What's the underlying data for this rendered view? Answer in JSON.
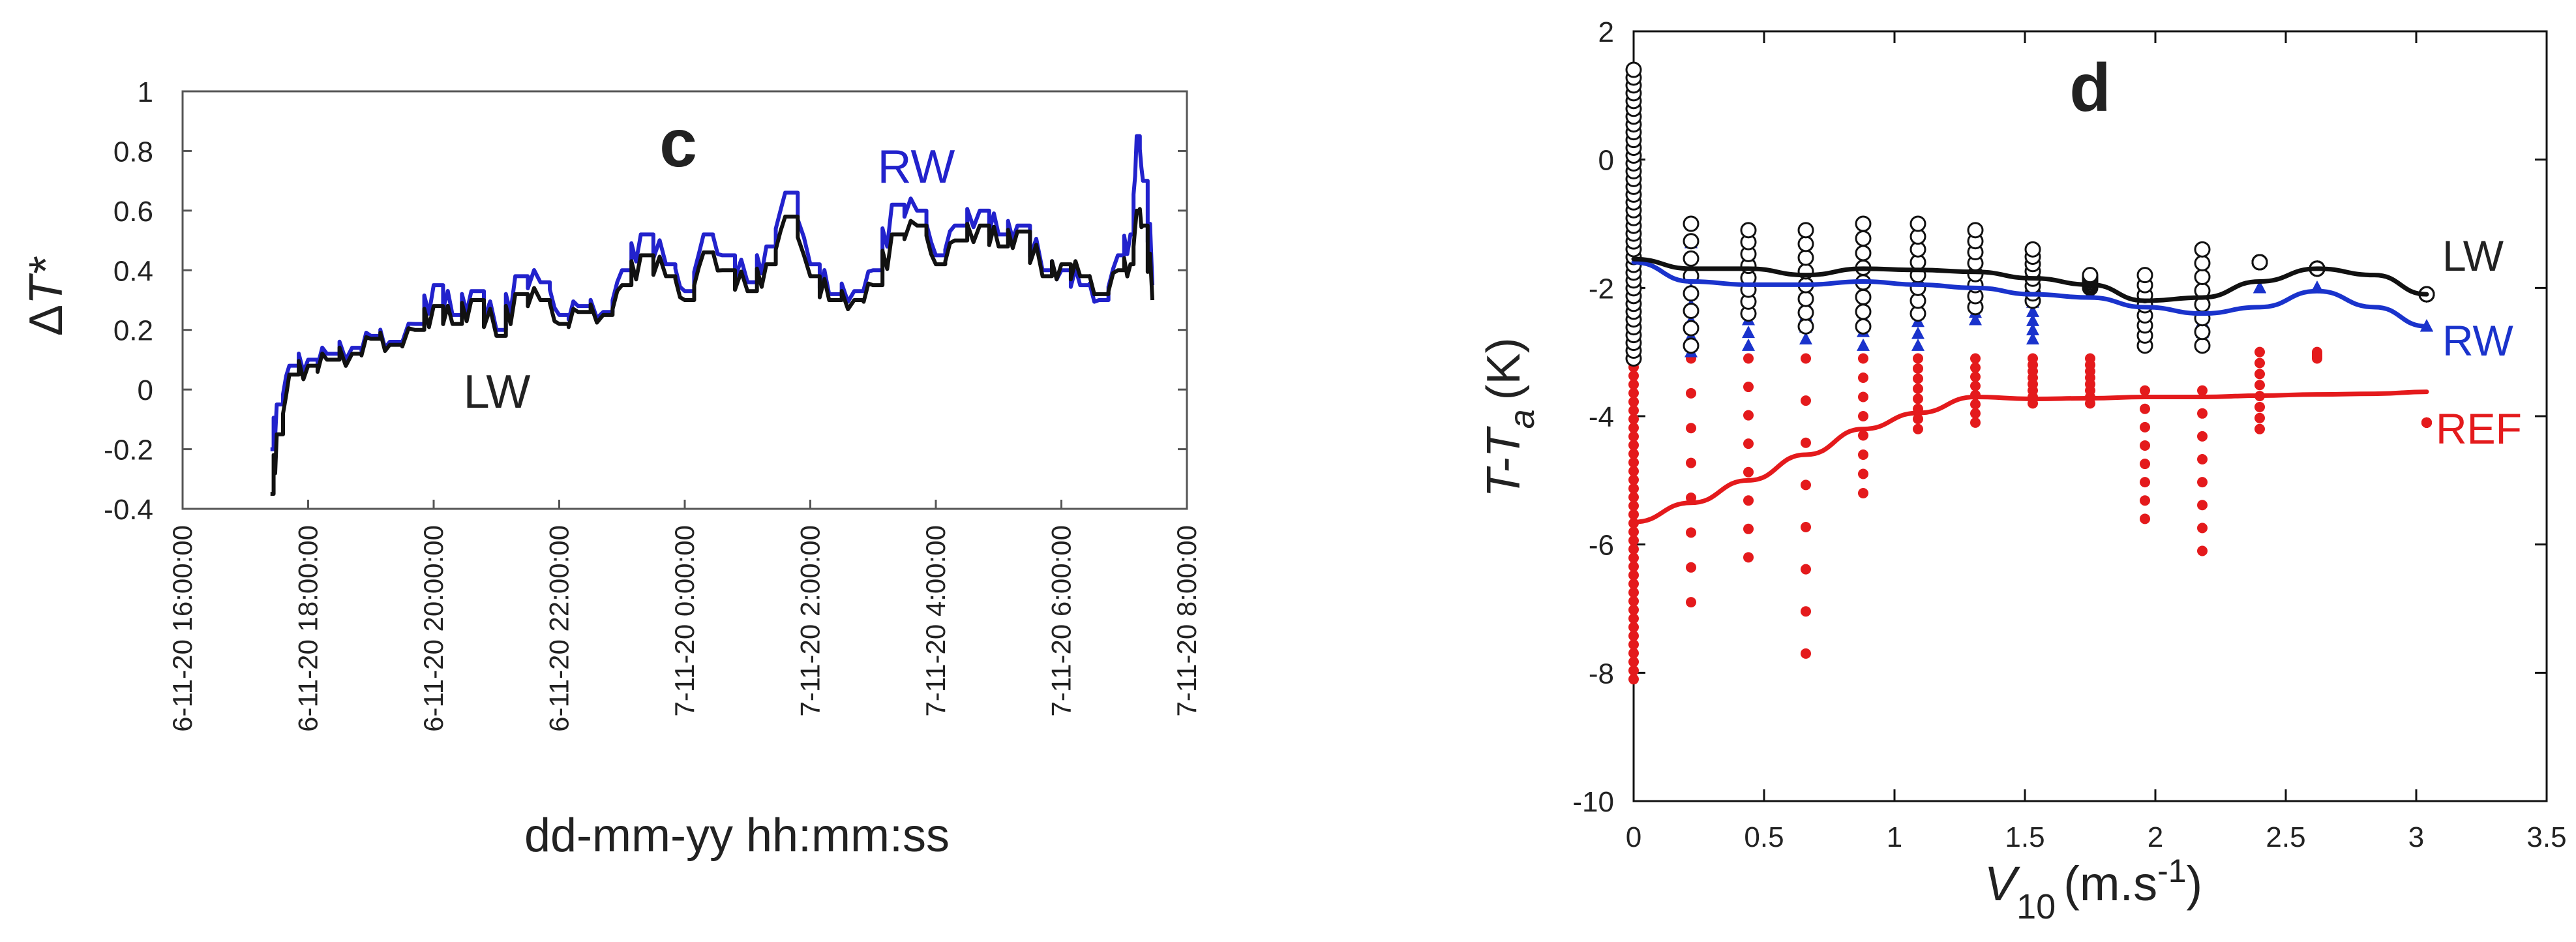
{
  "chart_data": [
    {
      "type": "line",
      "panel": "c",
      "title": "c",
      "xlabel": "dd-mm-yy hh:mm:ss",
      "ylabel_symbol": "T*",
      "ylabel_prefix": "Δ",
      "ylim": [
        -0.4,
        1.0
      ],
      "y_ticks": [
        -0.4,
        -0.2,
        0,
        0.2,
        0.4,
        0.6,
        0.8,
        1
      ],
      "x_ticks": [
        "6-11-20 16:00:00",
        "6-11-20 18:00:00",
        "6-11-20 20:00:00",
        "6-11-20 22:00:00",
        "7-11-20 0:00:00",
        "7-11-20 2:00:00",
        "7-11-20 4:00:00",
        "7-11-20 6:00:00",
        "7-11-20 8:00:00"
      ],
      "x_hours_range": [
        16,
        32
      ],
      "series": [
        {
          "name": "LW",
          "color": "#111111",
          "x_hours": [
            17.4,
            17.5,
            17.7,
            18.0,
            18.3,
            18.7,
            19.0,
            19.3,
            19.7,
            20.0,
            20.3,
            20.6,
            21.0,
            21.3,
            21.7,
            22.0,
            22.3,
            22.7,
            23.0,
            23.3,
            23.7,
            24.0,
            24.3,
            24.6,
            25.0,
            25.3,
            25.6,
            26.0,
            26.3,
            26.7,
            27.0,
            27.3,
            27.7,
            28.0,
            28.3,
            28.7,
            29.0,
            29.3,
            29.7,
            30.0,
            30.3,
            30.6,
            30.9,
            31.1,
            31.2,
            31.3,
            31.45
          ],
          "values": [
            -0.35,
            -0.15,
            0.05,
            0.08,
            0.1,
            0.12,
            0.17,
            0.15,
            0.2,
            0.28,
            0.22,
            0.3,
            0.18,
            0.32,
            0.3,
            0.22,
            0.26,
            0.25,
            0.35,
            0.45,
            0.38,
            0.3,
            0.46,
            0.4,
            0.33,
            0.42,
            0.58,
            0.38,
            0.3,
            0.3,
            0.35,
            0.52,
            0.55,
            0.42,
            0.5,
            0.55,
            0.48,
            0.53,
            0.38,
            0.42,
            0.38,
            0.32,
            0.4,
            0.42,
            0.6,
            0.55,
            0.3
          ]
        },
        {
          "name": "RW",
          "color": "#2222cc",
          "x_hours": [
            17.4,
            17.5,
            17.7,
            18.0,
            18.3,
            18.7,
            19.0,
            19.3,
            19.7,
            20.0,
            20.3,
            20.6,
            21.0,
            21.3,
            21.7,
            22.0,
            22.3,
            22.7,
            23.0,
            23.3,
            23.7,
            24.0,
            24.3,
            24.6,
            25.0,
            25.3,
            25.6,
            26.0,
            26.3,
            26.7,
            27.0,
            27.3,
            27.7,
            28.0,
            28.3,
            28.7,
            29.0,
            29.3,
            29.7,
            30.0,
            30.3,
            30.6,
            30.9,
            31.1,
            31.2,
            31.3,
            31.45
          ],
          "values": [
            -0.2,
            -0.05,
            0.08,
            0.1,
            0.12,
            0.14,
            0.18,
            0.16,
            0.22,
            0.35,
            0.25,
            0.33,
            0.2,
            0.38,
            0.36,
            0.25,
            0.28,
            0.26,
            0.4,
            0.52,
            0.42,
            0.33,
            0.52,
            0.45,
            0.36,
            0.48,
            0.66,
            0.42,
            0.32,
            0.33,
            0.4,
            0.62,
            0.6,
            0.45,
            0.55,
            0.6,
            0.52,
            0.55,
            0.4,
            0.4,
            0.35,
            0.3,
            0.45,
            0.52,
            0.85,
            0.7,
            0.35
          ]
        }
      ],
      "annotations": [
        "c",
        "RW",
        "LW"
      ]
    },
    {
      "type": "scatter",
      "panel": "d",
      "title": "d",
      "xlabel_symbol": "V",
      "xlabel_sub": "10",
      "xlabel_unit": "(m.s",
      "xlabel_exp": "-1",
      "xlabel_close": ")",
      "ylabel_symbol": "T-T",
      "ylabel_sub": "a",
      "ylabel_unit": "(K)",
      "xlim": [
        0,
        3.5
      ],
      "ylim": [
        -10,
        2
      ],
      "x_ticks": [
        "0",
        "0.5",
        "1",
        "1.5",
        "2",
        "2.5",
        "3",
        "3.5"
      ],
      "y_ticks": [
        "2",
        "0",
        "-2",
        "-4",
        "-6",
        "-8",
        "-10"
      ],
      "wind_speeds": [
        0,
        0.22,
        0.44,
        0.66,
        0.88,
        1.09,
        1.31,
        1.53,
        1.75,
        1.96,
        2.18,
        2.4,
        2.62,
        3.04
      ],
      "series": [
        {
          "name": "LW",
          "color": "#111111",
          "marker": "open-circle",
          "fit_x": [
            0,
            0.22,
            0.44,
            0.66,
            0.88,
            1.09,
            1.31,
            1.53,
            1.75,
            1.96,
            2.18,
            2.4,
            2.62,
            2.84,
            3.04
          ],
          "fit_y": [
            -1.55,
            -1.7,
            -1.7,
            -1.8,
            -1.7,
            -1.72,
            -1.75,
            -1.85,
            -1.95,
            -2.2,
            -2.15,
            -1.9,
            -1.7,
            -1.8,
            -2.1
          ],
          "scatter_range": [
            [
              -3.1,
              1.4
            ],
            [
              -2.9,
              -1.0
            ],
            [
              -2.4,
              -1.1
            ],
            [
              -2.6,
              -1.1
            ],
            [
              -2.6,
              -1.0
            ],
            [
              -2.4,
              -1.0
            ],
            [
              -2.3,
              -1.1
            ],
            [
              -2.2,
              -1.4
            ],
            [
              -2.0,
              -1.8
            ],
            [
              -2.9,
              -1.8
            ],
            [
              -2.9,
              -1.4
            ],
            [
              -1.6,
              -1.6
            ],
            [
              -1.7,
              -1.7
            ],
            [
              -2.1,
              -2.1
            ]
          ]
        },
        {
          "name": "RW",
          "color": "#1a33cc",
          "marker": "filled-triangle",
          "fit_x": [
            0,
            0.22,
            0.44,
            0.66,
            0.88,
            1.09,
            1.31,
            1.53,
            1.75,
            1.96,
            2.18,
            2.4,
            2.62,
            2.84,
            3.04
          ],
          "fit_y": [
            -1.6,
            -1.9,
            -1.95,
            -1.95,
            -1.9,
            -1.95,
            -2.0,
            -2.1,
            -2.15,
            -2.3,
            -2.4,
            -2.3,
            -2.05,
            -2.3,
            -2.6
          ],
          "scatter_range": [
            [
              -3.0,
              0.8
            ],
            [
              -3.0,
              -1.3
            ],
            [
              -2.9,
              -1.5
            ],
            [
              -2.8,
              -1.5
            ],
            [
              -2.9,
              -1.4
            ],
            [
              -2.9,
              -1.6
            ],
            [
              -2.5,
              -1.7
            ],
            [
              -2.8,
              -1.8
            ],
            [
              -2.1,
              -2.1
            ],
            [
              -2.6,
              -2.2
            ],
            [
              -2.7,
              -2.1
            ],
            [
              -2.0,
              -2.0
            ],
            [
              -2.0,
              -2.0
            ],
            [
              -2.6,
              -2.6
            ]
          ]
        },
        {
          "name": "REF",
          "color": "#e41a1c",
          "marker": "filled-dot",
          "fit_x": [
            0,
            0.22,
            0.44,
            0.66,
            0.88,
            1.09,
            1.31,
            1.53,
            1.75,
            1.96,
            2.18,
            2.4,
            2.62,
            2.84,
            3.04
          ],
          "fit_y": [
            -5.65,
            -5.35,
            -5.0,
            -4.6,
            -4.2,
            -3.95,
            -3.7,
            -3.73,
            -3.72,
            -3.7,
            -3.7,
            -3.68,
            -3.66,
            -3.65,
            -3.62
          ],
          "scatter_range": [
            [
              -8.1,
              -3.1
            ],
            [
              -6.9,
              -3.1
            ],
            [
              -6.2,
              -3.1
            ],
            [
              -7.7,
              -3.1
            ],
            [
              -5.2,
              -3.1
            ],
            [
              -4.2,
              -3.1
            ],
            [
              -4.1,
              -3.1
            ],
            [
              -3.8,
              -3.1
            ],
            [
              -3.8,
              -3.1
            ],
            [
              -5.6,
              -3.6
            ],
            [
              -6.1,
              -3.6
            ],
            [
              -4.2,
              -3.0
            ],
            [
              -3.1,
              -3.0
            ],
            [
              -4.1,
              -4.1
            ]
          ]
        }
      ],
      "annotations": [
        "d",
        "LW",
        "RW",
        "REF"
      ]
    }
  ]
}
